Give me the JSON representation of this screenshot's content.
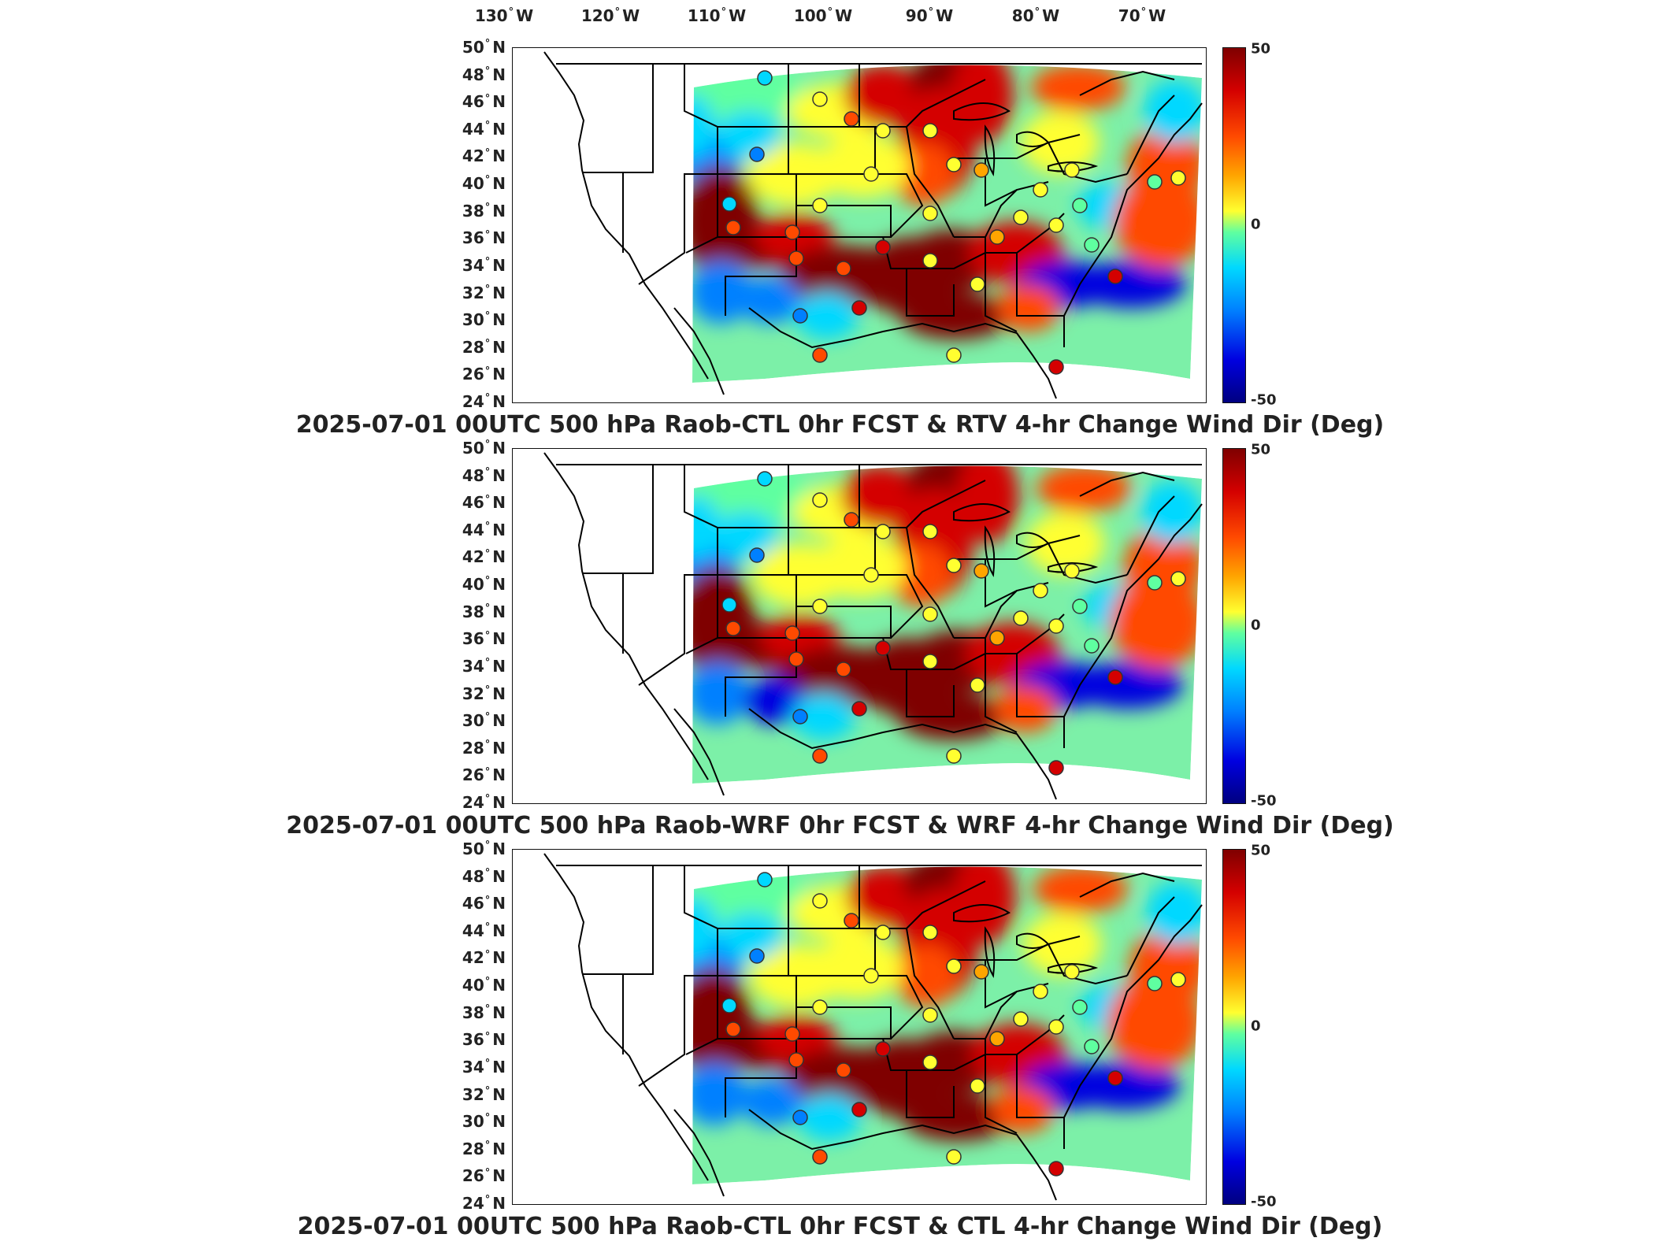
{
  "longitude_labels": [
    {
      "deg": "130",
      "hem": "W"
    },
    {
      "deg": "120",
      "hem": "W"
    },
    {
      "deg": "110",
      "hem": "W"
    },
    {
      "deg": "100",
      "hem": "W"
    },
    {
      "deg": "90",
      "hem": "W"
    },
    {
      "deg": "80",
      "hem": "W"
    },
    {
      "deg": "70",
      "hem": "W"
    }
  ],
  "latitude_labels": [
    {
      "deg": "50",
      "hem": "N"
    },
    {
      "deg": "48",
      "hem": "N"
    },
    {
      "deg": "46",
      "hem": "N"
    },
    {
      "deg": "44",
      "hem": "N"
    },
    {
      "deg": "42",
      "hem": "N"
    },
    {
      "deg": "40",
      "hem": "N"
    },
    {
      "deg": "38",
      "hem": "N"
    },
    {
      "deg": "36",
      "hem": "N"
    },
    {
      "deg": "34",
      "hem": "N"
    },
    {
      "deg": "32",
      "hem": "N"
    },
    {
      "deg": "30",
      "hem": "N"
    },
    {
      "deg": "28",
      "hem": "N"
    },
    {
      "deg": "26",
      "hem": "N"
    },
    {
      "deg": "24",
      "hem": "N"
    }
  ],
  "colorbar": {
    "max": "50",
    "mid": "0",
    "min": "-50"
  },
  "panels": [
    {
      "title": "2025-07-01 00UTC 500 hPa Raob-CTL 0hr FCST & RTV 4-hr Change Wind Dir (Deg)"
    },
    {
      "title": "2025-07-01 00UTC 500 hPa Raob-WRF 0hr FCST & WRF 4-hr Change Wind Dir (Deg)"
    },
    {
      "title": "2025-07-01 00UTC 500 hPa Raob-CTL 0hr FCST & CTL 4-hr Change Wind Dir (Deg)"
    }
  ],
  "colors": {
    "max": "#7f0000",
    "zero": "#5fffa0",
    "min": "#000080"
  }
}
